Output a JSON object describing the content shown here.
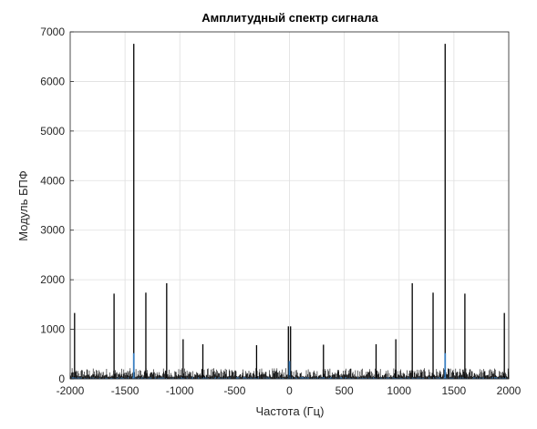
{
  "chart_data": {
    "type": "line",
    "title": "Амплитудный спектр сигнала",
    "xlabel": "Частота (Гц)",
    "ylabel": "Модуль БПФ",
    "xlim": [
      -2000,
      2000
    ],
    "ylim": [
      0,
      7000
    ],
    "xticks": [
      "-2000",
      "-1500",
      "-1000",
      "-500",
      "0",
      "500",
      "1000",
      "1500",
      "2000"
    ],
    "yticks": [
      "0",
      "1000",
      "2000",
      "3000",
      "4000",
      "5000",
      "6000",
      "7000"
    ],
    "grid": true,
    "series": [
      {
        "color": "#000000",
        "peaks": [
          {
            "x": -1960,
            "y": 1330
          },
          {
            "x": -1600,
            "y": 1720
          },
          {
            "x": -1420,
            "y": 6760
          },
          {
            "x": -1310,
            "y": 1740
          },
          {
            "x": -1120,
            "y": 1930
          },
          {
            "x": -970,
            "y": 800
          },
          {
            "x": -790,
            "y": 700
          },
          {
            "x": -300,
            "y": 680
          },
          {
            "x": -10,
            "y": 1060
          },
          {
            "x": 10,
            "y": 1060
          },
          {
            "x": 310,
            "y": 690
          },
          {
            "x": 790,
            "y": 700
          },
          {
            "x": 970,
            "y": 800
          },
          {
            "x": 1120,
            "y": 1930
          },
          {
            "x": 1310,
            "y": 1740
          },
          {
            "x": 1420,
            "y": 6760
          },
          {
            "x": 1600,
            "y": 1720
          },
          {
            "x": 1960,
            "y": 1330
          }
        ],
        "noise_floor": 150
      },
      {
        "color": "#3a7fc1",
        "peaks": [
          {
            "x": -1420,
            "y": 520
          },
          {
            "x": 0,
            "y": 360
          },
          {
            "x": 1420,
            "y": 520
          }
        ],
        "noise_floor": 25
      }
    ]
  }
}
